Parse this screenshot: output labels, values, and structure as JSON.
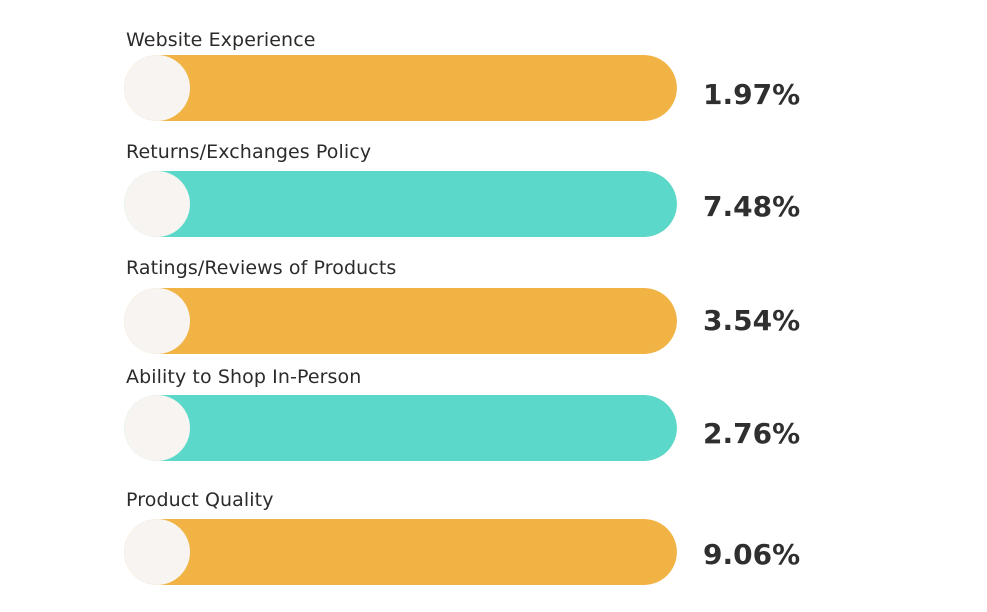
{
  "chart_data": {
    "type": "bar",
    "orientation": "horizontal",
    "title": "",
    "xlabel": "",
    "ylabel": "",
    "categories": [
      "Website Experience",
      "Returns/Exchanges Policy",
      "Ratings/Reviews of Products",
      "Ability to Shop In-Person",
      "Product Quality"
    ],
    "values": [
      1.97,
      7.48,
      3.54,
      2.76,
      9.06
    ],
    "value_labels": [
      "1.97%",
      "7.48%",
      "3.54%",
      "2.76%",
      "9.06%"
    ],
    "bar_colors": [
      "#f2b345",
      "#5bd8c9",
      "#f2b345",
      "#5bd8c9",
      "#f2b345"
    ],
    "bar_fill_fraction": [
      1,
      1,
      1,
      1,
      1
    ],
    "knob_color": "#f7f4f1",
    "grid": false,
    "legend": "none"
  }
}
